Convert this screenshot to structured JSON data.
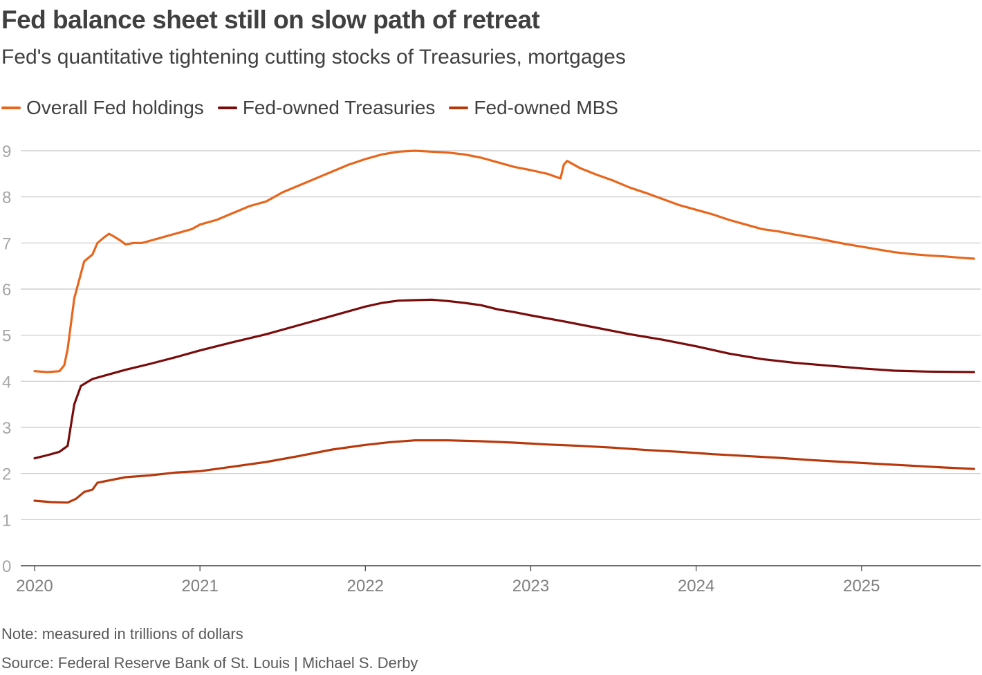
{
  "header": {
    "title": "Fed balance sheet still on slow path of retreat",
    "subtitle": "Fed's quantitative tightening cutting stocks of Treasuries, mortgages"
  },
  "legend": [
    {
      "label": "Overall Fed holdings",
      "color": "#e8661c"
    },
    {
      "label": "Fed-owned Treasuries",
      "color": "#7a0b0b"
    },
    {
      "label": "Fed-owned MBS",
      "color": "#b8380c"
    }
  ],
  "footer": {
    "note": "Note: measured in trillions of dollars",
    "source": "Source: Federal Reserve Bank of St. Louis | Michael S. Derby"
  },
  "chart_data": {
    "type": "line",
    "title": "Fed balance sheet still on slow path of retreat",
    "xlabel": "",
    "ylabel": "",
    "xlim": [
      2020.0,
      2025.72
    ],
    "ylim": [
      0,
      9
    ],
    "grid": true,
    "legend_position": "top-left",
    "x_ticks": [
      {
        "value": 2020,
        "label": "2020"
      },
      {
        "value": 2021,
        "label": "2021"
      },
      {
        "value": 2022,
        "label": "2022"
      },
      {
        "value": 2023,
        "label": "2023"
      },
      {
        "value": 2024,
        "label": "2024"
      },
      {
        "value": 2025,
        "label": "2025"
      }
    ],
    "y_ticks": [
      {
        "value": 0,
        "label": "0"
      },
      {
        "value": 1,
        "label": "1"
      },
      {
        "value": 2,
        "label": "2"
      },
      {
        "value": 3,
        "label": "3"
      },
      {
        "value": 4,
        "label": "4"
      },
      {
        "value": 5,
        "label": "5"
      },
      {
        "value": 6,
        "label": "6"
      },
      {
        "value": 7,
        "label": "7"
      },
      {
        "value": 8,
        "label": "8"
      },
      {
        "value": 9,
        "label": "9"
      }
    ],
    "series": [
      {
        "name": "Overall Fed holdings",
        "color": "#e8661c",
        "points": [
          [
            2020.0,
            4.22
          ],
          [
            2020.08,
            4.2
          ],
          [
            2020.15,
            4.22
          ],
          [
            2020.18,
            4.35
          ],
          [
            2020.2,
            4.7
          ],
          [
            2020.24,
            5.8
          ],
          [
            2020.3,
            6.6
          ],
          [
            2020.35,
            6.75
          ],
          [
            2020.38,
            7.0
          ],
          [
            2020.42,
            7.12
          ],
          [
            2020.45,
            7.2
          ],
          [
            2020.48,
            7.14
          ],
          [
            2020.52,
            7.05
          ],
          [
            2020.55,
            6.97
          ],
          [
            2020.6,
            7.0
          ],
          [
            2020.65,
            7.0
          ],
          [
            2020.7,
            7.05
          ],
          [
            2020.75,
            7.1
          ],
          [
            2020.8,
            7.15
          ],
          [
            2020.85,
            7.2
          ],
          [
            2020.9,
            7.25
          ],
          [
            2020.95,
            7.3
          ],
          [
            2021.0,
            7.4
          ],
          [
            2021.1,
            7.5
          ],
          [
            2021.2,
            7.65
          ],
          [
            2021.3,
            7.8
          ],
          [
            2021.4,
            7.9
          ],
          [
            2021.5,
            8.1
          ],
          [
            2021.6,
            8.25
          ],
          [
            2021.7,
            8.4
          ],
          [
            2021.8,
            8.55
          ],
          [
            2021.9,
            8.7
          ],
          [
            2022.0,
            8.82
          ],
          [
            2022.1,
            8.92
          ],
          [
            2022.2,
            8.98
          ],
          [
            2022.3,
            9.0
          ],
          [
            2022.4,
            8.98
          ],
          [
            2022.5,
            8.96
          ],
          [
            2022.6,
            8.92
          ],
          [
            2022.7,
            8.85
          ],
          [
            2022.8,
            8.75
          ],
          [
            2022.9,
            8.65
          ],
          [
            2023.0,
            8.58
          ],
          [
            2023.1,
            8.5
          ],
          [
            2023.18,
            8.4
          ],
          [
            2023.2,
            8.7
          ],
          [
            2023.22,
            8.78
          ],
          [
            2023.3,
            8.62
          ],
          [
            2023.4,
            8.48
          ],
          [
            2023.5,
            8.35
          ],
          [
            2023.6,
            8.2
          ],
          [
            2023.7,
            8.08
          ],
          [
            2023.8,
            7.95
          ],
          [
            2023.9,
            7.82
          ],
          [
            2024.0,
            7.72
          ],
          [
            2024.1,
            7.62
          ],
          [
            2024.2,
            7.5
          ],
          [
            2024.3,
            7.4
          ],
          [
            2024.4,
            7.3
          ],
          [
            2024.5,
            7.25
          ],
          [
            2024.6,
            7.18
          ],
          [
            2024.7,
            7.12
          ],
          [
            2024.8,
            7.05
          ],
          [
            2024.9,
            6.98
          ],
          [
            2025.0,
            6.92
          ],
          [
            2025.1,
            6.86
          ],
          [
            2025.2,
            6.8
          ],
          [
            2025.3,
            6.76
          ],
          [
            2025.4,
            6.73
          ],
          [
            2025.5,
            6.71
          ],
          [
            2025.6,
            6.68
          ],
          [
            2025.68,
            6.66
          ]
        ]
      },
      {
        "name": "Fed-owned Treasuries",
        "color": "#7a0b0b",
        "points": [
          [
            2020.0,
            2.33
          ],
          [
            2020.08,
            2.4
          ],
          [
            2020.15,
            2.47
          ],
          [
            2020.2,
            2.6
          ],
          [
            2020.24,
            3.5
          ],
          [
            2020.28,
            3.9
          ],
          [
            2020.35,
            4.05
          ],
          [
            2020.45,
            4.15
          ],
          [
            2020.55,
            4.25
          ],
          [
            2020.7,
            4.38
          ],
          [
            2020.85,
            4.52
          ],
          [
            2021.0,
            4.67
          ],
          [
            2021.2,
            4.85
          ],
          [
            2021.4,
            5.02
          ],
          [
            2021.6,
            5.22
          ],
          [
            2021.8,
            5.42
          ],
          [
            2022.0,
            5.62
          ],
          [
            2022.1,
            5.7
          ],
          [
            2022.2,
            5.75
          ],
          [
            2022.3,
            5.76
          ],
          [
            2022.4,
            5.77
          ],
          [
            2022.5,
            5.74
          ],
          [
            2022.6,
            5.7
          ],
          [
            2022.7,
            5.65
          ],
          [
            2022.8,
            5.56
          ],
          [
            2022.9,
            5.5
          ],
          [
            2023.0,
            5.43
          ],
          [
            2023.2,
            5.3
          ],
          [
            2023.4,
            5.16
          ],
          [
            2023.6,
            5.02
          ],
          [
            2023.8,
            4.9
          ],
          [
            2024.0,
            4.76
          ],
          [
            2024.2,
            4.6
          ],
          [
            2024.4,
            4.48
          ],
          [
            2024.6,
            4.4
          ],
          [
            2024.8,
            4.34
          ],
          [
            2025.0,
            4.28
          ],
          [
            2025.2,
            4.23
          ],
          [
            2025.4,
            4.21
          ],
          [
            2025.68,
            4.2
          ]
        ]
      },
      {
        "name": "Fed-owned MBS",
        "color": "#b8380c",
        "points": [
          [
            2020.0,
            1.41
          ],
          [
            2020.1,
            1.38
          ],
          [
            2020.2,
            1.37
          ],
          [
            2020.25,
            1.45
          ],
          [
            2020.3,
            1.6
          ],
          [
            2020.35,
            1.65
          ],
          [
            2020.38,
            1.8
          ],
          [
            2020.45,
            1.85
          ],
          [
            2020.55,
            1.92
          ],
          [
            2020.7,
            1.96
          ],
          [
            2020.85,
            2.02
          ],
          [
            2021.0,
            2.05
          ],
          [
            2021.2,
            2.15
          ],
          [
            2021.4,
            2.25
          ],
          [
            2021.6,
            2.38
          ],
          [
            2021.8,
            2.52
          ],
          [
            2022.0,
            2.62
          ],
          [
            2022.15,
            2.68
          ],
          [
            2022.3,
            2.72
          ],
          [
            2022.5,
            2.72
          ],
          [
            2022.7,
            2.7
          ],
          [
            2022.9,
            2.67
          ],
          [
            2023.1,
            2.63
          ],
          [
            2023.3,
            2.6
          ],
          [
            2023.5,
            2.56
          ],
          [
            2023.7,
            2.51
          ],
          [
            2023.9,
            2.47
          ],
          [
            2024.1,
            2.42
          ],
          [
            2024.3,
            2.38
          ],
          [
            2024.5,
            2.34
          ],
          [
            2024.7,
            2.29
          ],
          [
            2024.9,
            2.25
          ],
          [
            2025.1,
            2.21
          ],
          [
            2025.3,
            2.17
          ],
          [
            2025.5,
            2.13
          ],
          [
            2025.68,
            2.1
          ]
        ]
      }
    ]
  }
}
